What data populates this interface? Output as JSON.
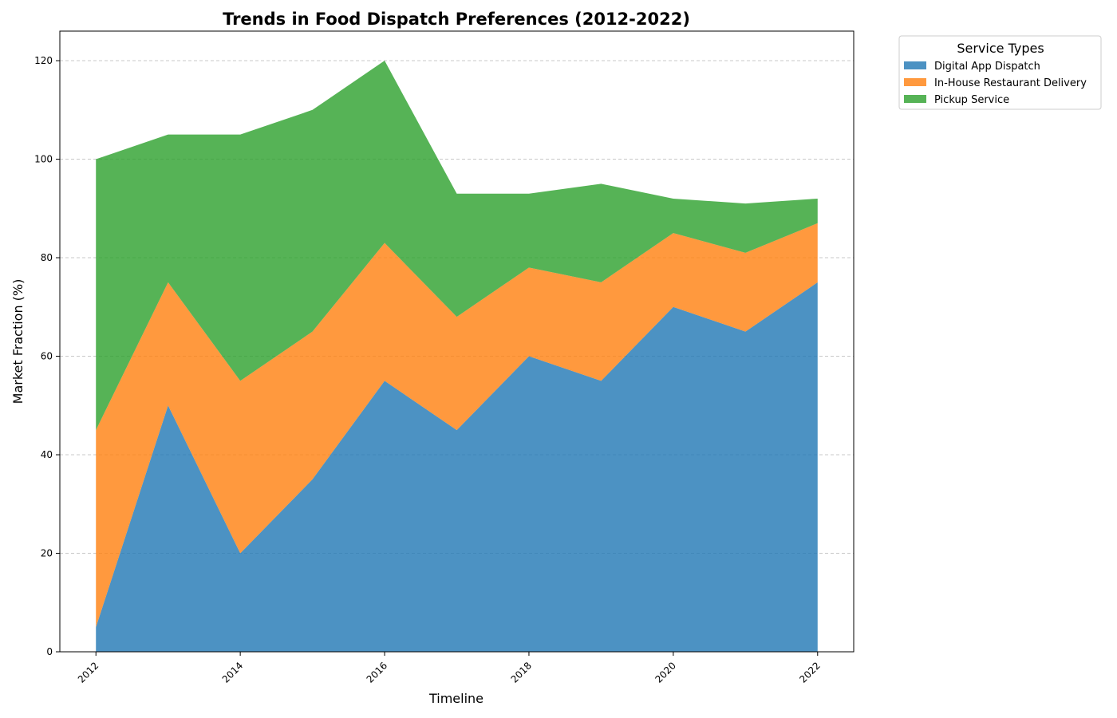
{
  "chart_data": {
    "type": "area",
    "stacked": true,
    "title": "Trends in Food Dispatch Preferences (2012-2022)",
    "xlabel": "Timeline",
    "ylabel": "Market Fraction (%)",
    "x": [
      2012,
      2013,
      2014,
      2015,
      2016,
      2017,
      2018,
      2019,
      2020,
      2021,
      2022
    ],
    "xticks": [
      "2012",
      "2014",
      "2016",
      "2018",
      "2020",
      "2022"
    ],
    "yticks": [
      "0",
      "20",
      "40",
      "60",
      "80",
      "100",
      "120"
    ],
    "ylim": [
      0,
      126
    ],
    "xlim": [
      2011.5,
      2022.5
    ],
    "grid": "y-dashed",
    "legend": {
      "title": "Service Types",
      "placement": "outside-top-right"
    },
    "series": [
      {
        "name": "Digital App Dispatch",
        "color": "#1f77b4",
        "values": [
          5,
          50,
          20,
          35,
          55,
          45,
          60,
          55,
          70,
          65,
          75
        ]
      },
      {
        "name": "In-House Restaurant Delivery",
        "color": "#ff7f0e",
        "values": [
          40,
          25,
          35,
          30,
          28,
          23,
          18,
          20,
          15,
          16,
          12
        ]
      },
      {
        "name": "Pickup Service",
        "color": "#2ca02c",
        "values": [
          55,
          30,
          50,
          45,
          37,
          25,
          15,
          20,
          7,
          10,
          5
        ]
      }
    ]
  }
}
